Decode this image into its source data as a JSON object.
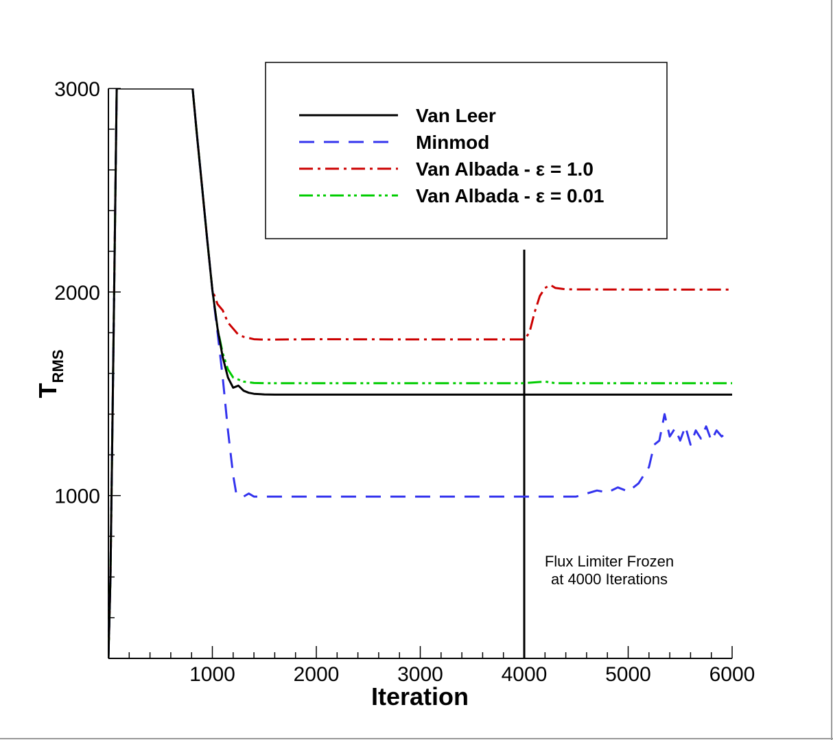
{
  "chart_data": {
    "type": "line",
    "xlabel": "Iteration",
    "ylabel_main": "T",
    "ylabel_sub": "RMS",
    "xlim": [
      0,
      6000
    ],
    "ylim": [
      200,
      3000
    ],
    "x_ticks": [
      1000,
      2000,
      3000,
      4000,
      5000,
      6000
    ],
    "x_tick_labels": [
      "1000",
      "2000",
      "3000",
      "4000",
      "5000",
      "6000"
    ],
    "y_ticks": [
      1000,
      2000,
      3000
    ],
    "y_tick_labels": [
      "1000",
      "2000",
      "3000"
    ],
    "legend_position": "top-center",
    "grid": false,
    "vertical_line_x": 4000,
    "annotation": [
      "Flux Limiter Frozen",
      "at 4000 Iterations"
    ],
    "series": [
      {
        "name": "Van Leer",
        "color": "#000000",
        "style": "solid",
        "x": [
          0,
          20,
          50,
          80,
          810,
          850,
          900,
          950,
          1000,
          1050,
          1100,
          1150,
          1200,
          1250,
          1300,
          1350,
          1400,
          1500,
          1600,
          2000,
          3000,
          4000,
          5000,
          6000
        ],
        "y": [
          200,
          600,
          1800,
          3000,
          3000,
          2780,
          2520,
          2260,
          2010,
          1820,
          1680,
          1580,
          1530,
          1540,
          1515,
          1505,
          1500,
          1497,
          1496,
          1496,
          1496,
          1496,
          1496,
          1496
        ]
      },
      {
        "name": "Minmod",
        "color": "#3333ee",
        "style": "dashed",
        "x": [
          0,
          20,
          50,
          80,
          810,
          850,
          900,
          950,
          1000,
          1050,
          1100,
          1150,
          1200,
          1230,
          1260,
          1300,
          1350,
          1400,
          1500,
          2000,
          3000,
          4000,
          4500,
          4700,
          4800,
          4900,
          5000,
          5100,
          5200,
          5250,
          5300,
          5350,
          5400,
          5450,
          5500,
          5550,
          5600,
          5650,
          5700,
          5750,
          5800,
          5850,
          5900,
          5950
        ],
        "y": [
          200,
          600,
          1800,
          3000,
          3000,
          2780,
          2520,
          2260,
          2010,
          1800,
          1580,
          1320,
          1100,
          1010,
          1000,
          995,
          1010,
          995,
          995,
          995,
          995,
          995,
          995,
          1025,
          1015,
          1040,
          1020,
          1060,
          1140,
          1250,
          1270,
          1400,
          1290,
          1330,
          1270,
          1340,
          1250,
          1320,
          1280,
          1340,
          1270,
          1320,
          1290,
          1310
        ]
      },
      {
        "name": "Van Albada - ε = 1.0",
        "color": "#cc0000",
        "style": "dashdot",
        "x": [
          0,
          20,
          50,
          80,
          810,
          850,
          900,
          950,
          1000,
          1050,
          1100,
          1150,
          1200,
          1250,
          1300,
          1400,
          1500,
          2000,
          3000,
          3900,
          4000,
          4050,
          4100,
          4150,
          4200,
          4250,
          4300,
          4400,
          5000,
          6000
        ],
        "y": [
          200,
          600,
          1800,
          3000,
          3000,
          2780,
          2520,
          2260,
          2010,
          1940,
          1910,
          1850,
          1820,
          1790,
          1780,
          1768,
          1766,
          1768,
          1767,
          1767,
          1767,
          1800,
          1900,
          1980,
          2020,
          2035,
          2020,
          2013,
          2012,
          2012
        ]
      },
      {
        "name": "Van Albada - ε = 0.01",
        "color": "#00cc00",
        "style": "dashdotdot",
        "x": [
          0,
          20,
          50,
          80,
          810,
          850,
          900,
          950,
          1000,
          1050,
          1100,
          1150,
          1200,
          1250,
          1300,
          1400,
          1500,
          2000,
          3000,
          4000,
          4200,
          4300,
          5000,
          6000
        ],
        "y": [
          200,
          600,
          1800,
          3000,
          3000,
          2780,
          2520,
          2260,
          2010,
          1820,
          1700,
          1620,
          1580,
          1570,
          1560,
          1553,
          1552,
          1552,
          1552,
          1552,
          1560,
          1552,
          1552,
          1552
        ]
      }
    ]
  }
}
